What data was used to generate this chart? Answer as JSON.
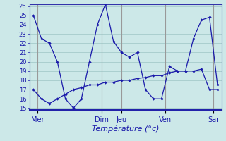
{
  "background_color": "#cce8e8",
  "grid_color": "#aacfcf",
  "line_color": "#1a1aaa",
  "xlabel": "Température (°c)",
  "ylim": [
    14.8,
    26.2
  ],
  "yticks": [
    15,
    16,
    17,
    18,
    19,
    20,
    21,
    22,
    23,
    24,
    25,
    26
  ],
  "x_day_labels": [
    "Mer",
    "Dim",
    "Jeu",
    "Ven",
    "Sar"
  ],
  "x_day_positions": [
    0.5,
    8.5,
    11.0,
    16.5,
    22.5
  ],
  "vline_positions": [
    0.5,
    8.5,
    11.0,
    16.5,
    22.5
  ],
  "series1_x": [
    0,
    1,
    2,
    3,
    4,
    5,
    6,
    7,
    8,
    9,
    10,
    11,
    12,
    13,
    14,
    15,
    16,
    17,
    18,
    19,
    20,
    21,
    22,
    23
  ],
  "series1_y": [
    25,
    22.5,
    22.0,
    20.0,
    16.0,
    15.0,
    16.0,
    20.0,
    24.0,
    26.2,
    22.2,
    21.0,
    20.5,
    21.0,
    17.0,
    16.0,
    16.0,
    19.5,
    19.0,
    19.0,
    22.5,
    24.5,
    24.8,
    17.5
  ],
  "series2_x": [
    0,
    1,
    2,
    3,
    4,
    5,
    6,
    7,
    8,
    9,
    10,
    11,
    12,
    13,
    14,
    15,
    16,
    17,
    18,
    19,
    20,
    21,
    22,
    23
  ],
  "series2_y": [
    17.0,
    16.0,
    15.5,
    16.0,
    16.5,
    17.0,
    17.2,
    17.5,
    17.5,
    17.8,
    17.8,
    18.0,
    18.0,
    18.2,
    18.3,
    18.5,
    18.5,
    18.8,
    19.0,
    19.0,
    19.0,
    19.2,
    17.0,
    17.0
  ],
  "xlim": [
    -0.5,
    23.5
  ],
  "xlabel_fontsize": 8,
  "ytick_fontsize": 6,
  "xtick_fontsize": 7
}
